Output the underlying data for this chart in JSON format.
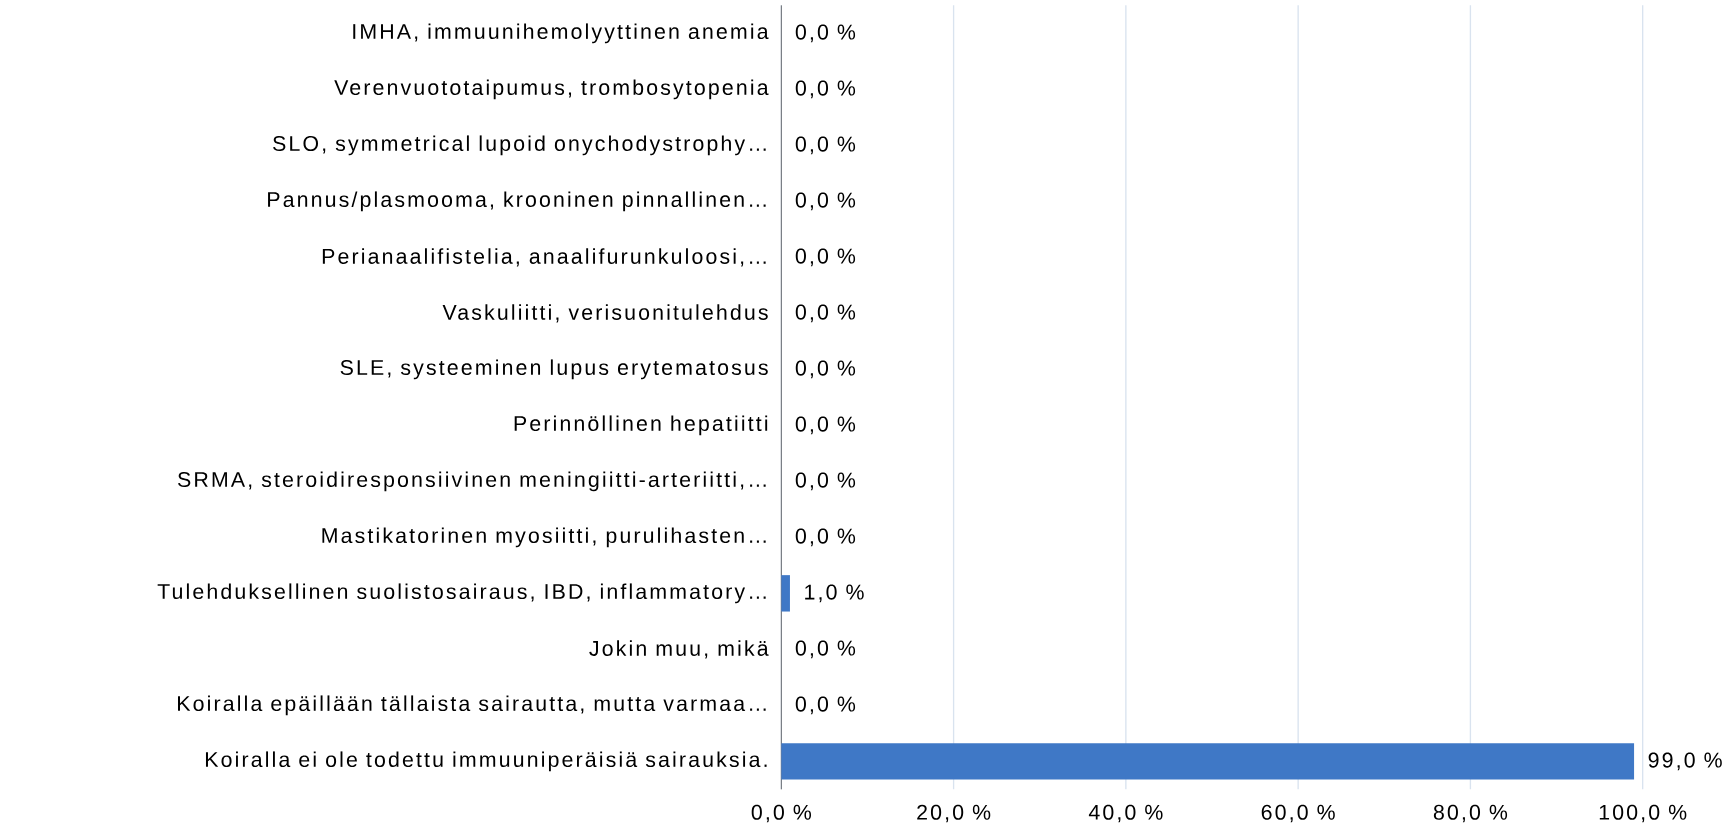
{
  "chart_data": {
    "type": "bar",
    "orientation": "horizontal",
    "grid": "x",
    "color": "#3f78c6",
    "categories": [
      "IMHA, immuunihemolyyttinen anemia",
      "Verenvuototaipumus, trombosytopenia",
      "SLO, symmetrical lupoid onychodystrophy…",
      "Pannus/plasmooma, krooninen pinnallinen…",
      "Perianaalifistelia, anaalifurunkuloosi,…",
      "Vaskuliitti, verisuonitulehdus",
      "SLE, systeeminen lupus erytematosus",
      "Perinnöllinen hepatiitti",
      "SRMA, steroidiresponsiivinen meningiitti-arteriitti,…",
      "Mastikatorinen myosiitti, purulihasten…",
      "Tulehduksellinen suolistosairaus, IBD, inflammatory…",
      "Jokin muu, mikä",
      "Koiralla epäillään tällaista sairautta, mutta varmaa…",
      "Koiralla ei ole todettu immuuniperäisiä sairauksia."
    ],
    "values": [
      0,
      0,
      0,
      0,
      0,
      0,
      0,
      0,
      0,
      0,
      1,
      0,
      0,
      99
    ],
    "value_labels": [
      "0,0 %",
      "0,0 %",
      "0,0 %",
      "0,0 %",
      "0,0 %",
      "0,0 %",
      "0,0 %",
      "0,0 %",
      "0,0 %",
      "0,0 %",
      "1,0 %",
      "0,0 %",
      "0,0 %",
      "99,0 %"
    ],
    "xlim": [
      0,
      100
    ],
    "xticks": [
      {
        "value": 0,
        "label": "0,0 %"
      },
      {
        "value": 20,
        "label": "20,0 %"
      },
      {
        "value": 40,
        "label": "40,0 %"
      },
      {
        "value": 60,
        "label": "60,0 %"
      },
      {
        "value": 80,
        "label": "80,0 %"
      },
      {
        "value": 100,
        "label": "100,0 %"
      }
    ]
  }
}
